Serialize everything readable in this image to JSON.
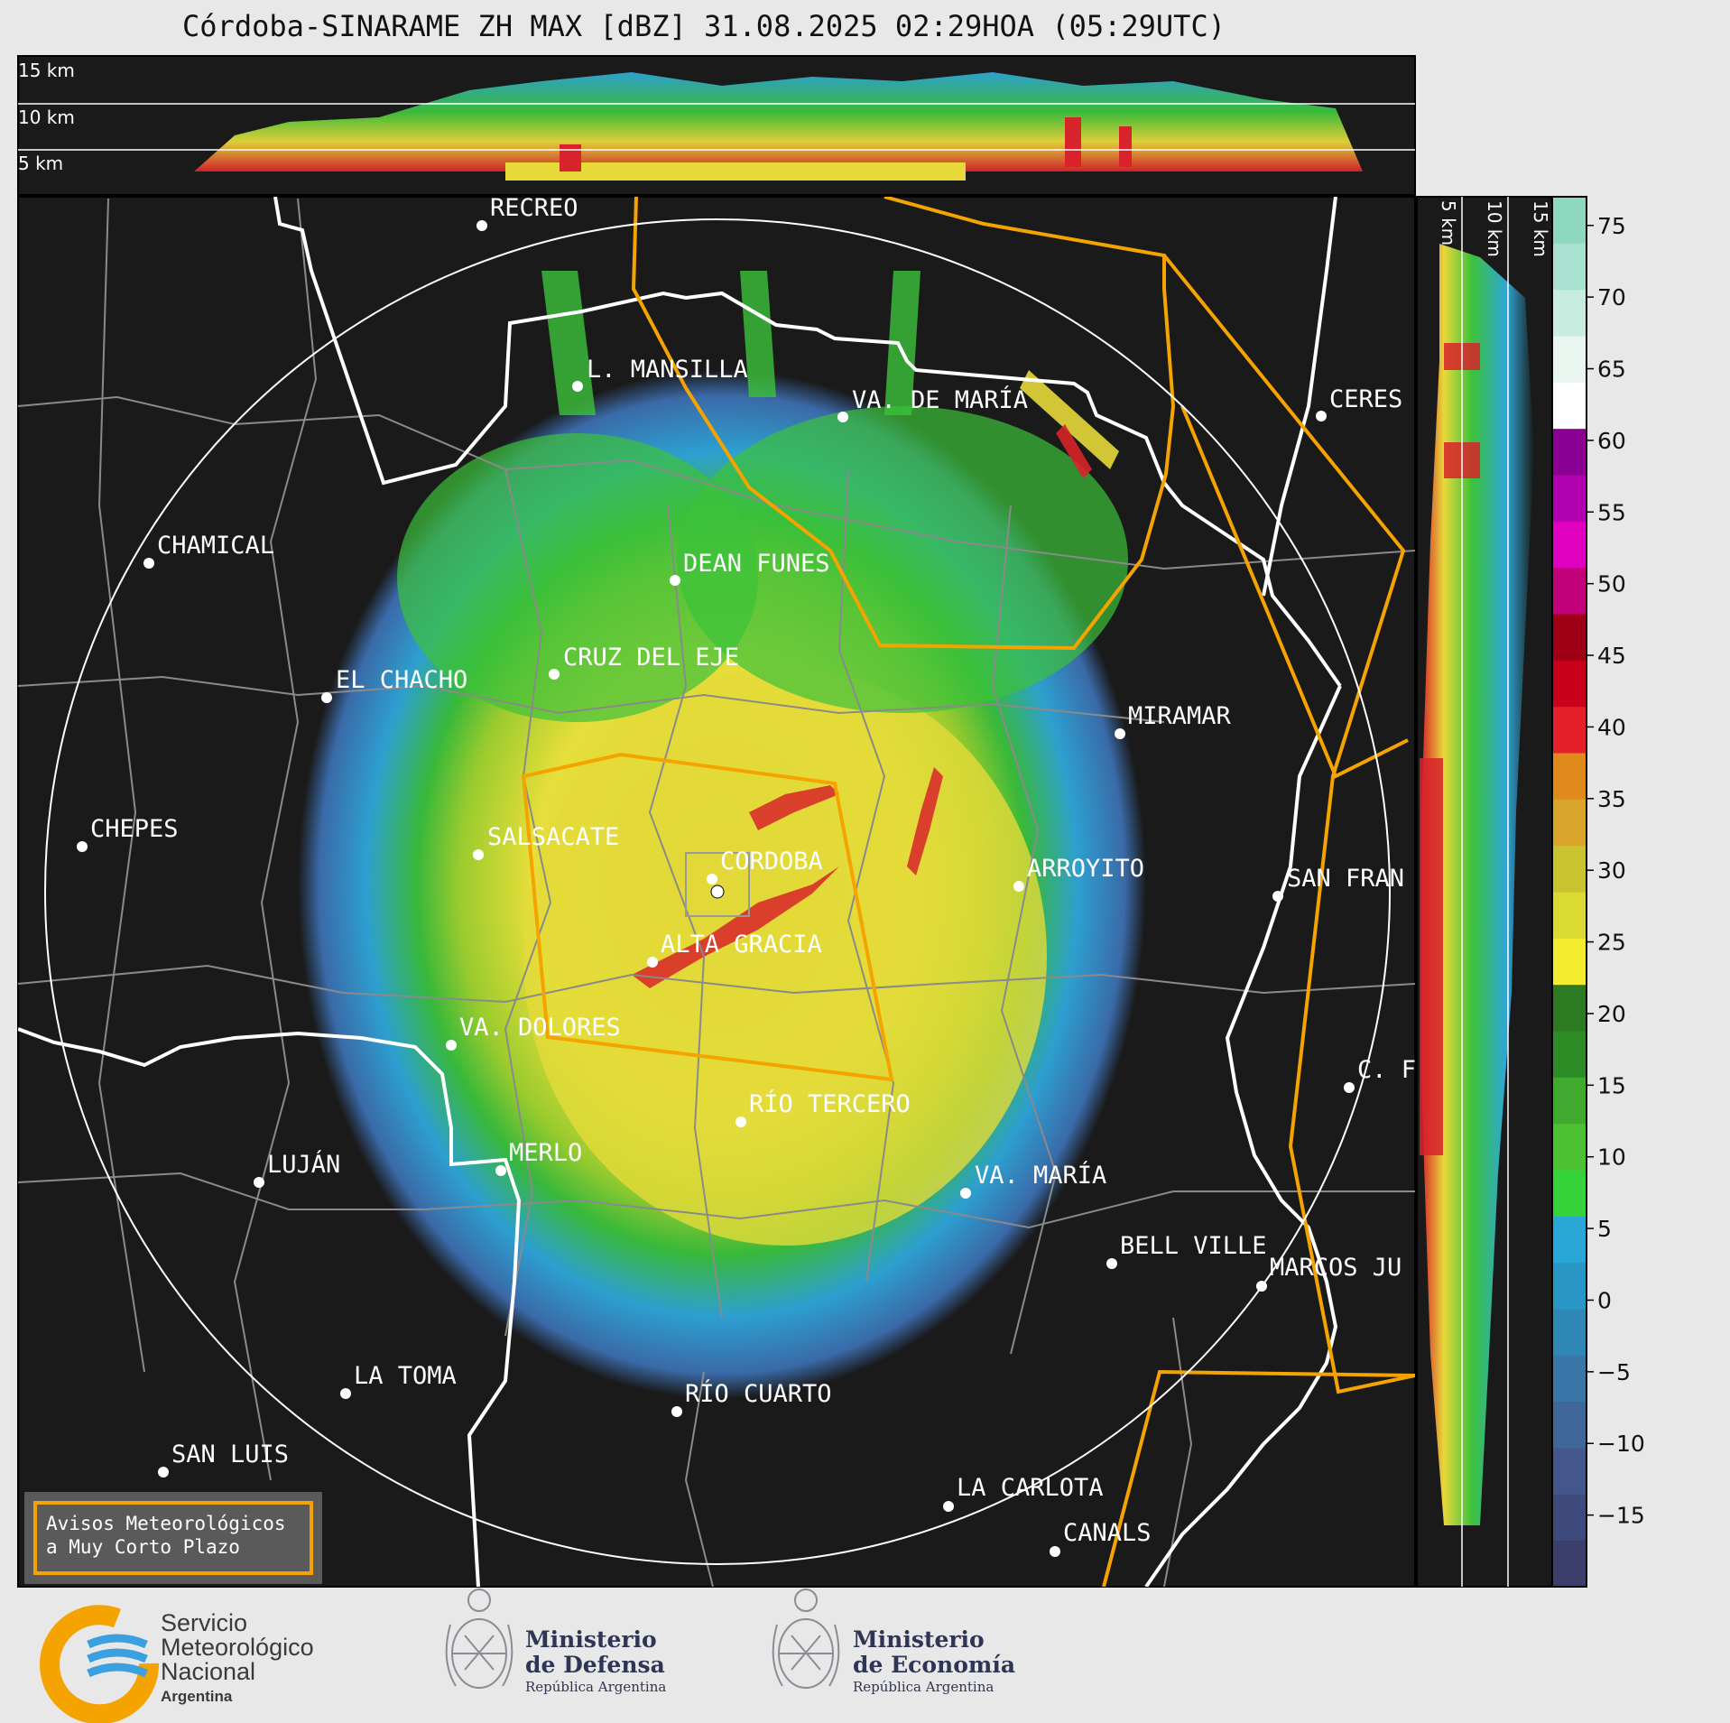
{
  "title": "Córdoba-SINARAME ZH MAX [dBZ] 31.08.2025 02:29HOA (05:29UTC)",
  "top_panel_labels": [
    "15 km",
    "10 km",
    "5 km"
  ],
  "side_panel_labels": [
    "5 km",
    "10 km",
    "15 km"
  ],
  "cities": [
    {
      "name": "RECREO"
    },
    {
      "name": "L. MANSILLA"
    },
    {
      "name": "VA. DE MARÍA"
    },
    {
      "name": "CERES"
    },
    {
      "name": "CHAMICAL"
    },
    {
      "name": "DEAN FUNES"
    },
    {
      "name": "CRUZ DEL EJE"
    },
    {
      "name": "EL CHACHO"
    },
    {
      "name": "MIRAMAR"
    },
    {
      "name": "CHEPES"
    },
    {
      "name": "SALSACATE"
    },
    {
      "name": "CORDOBA"
    },
    {
      "name": "ARROYITO"
    },
    {
      "name": "SAN FRAN"
    },
    {
      "name": "ALTA GRACIA"
    },
    {
      "name": "VA. DOLORES"
    },
    {
      "name": "C. F"
    },
    {
      "name": "RÍO TERCERO"
    },
    {
      "name": "MERLO"
    },
    {
      "name": "LUJÁN"
    },
    {
      "name": "VA. MARÍA"
    },
    {
      "name": "BELL VILLE"
    },
    {
      "name": "MARCOS JU"
    },
    {
      "name": "LA TOMA"
    },
    {
      "name": "RÍO CUARTO"
    },
    {
      "name": "SAN LUIS"
    },
    {
      "name": "LA CARLOTA"
    },
    {
      "name": "CANALS"
    }
  ],
  "colorbar": {
    "ticks": [
      "75",
      "70",
      "65",
      "60",
      "55",
      "50",
      "45",
      "40",
      "35",
      "30",
      "25",
      "20",
      "15",
      "10",
      "5",
      "0",
      "−5",
      "−10",
      "−15"
    ],
    "colors": [
      "#3b3d6b",
      "#3f4a7c",
      "#43578c",
      "#3f6799",
      "#3a77a8",
      "#2f87b6",
      "#2897c6",
      "#29a8d8",
      "#36d23a",
      "#4cc233",
      "#3faa2d",
      "#2e8c27",
      "#2c7a22",
      "#f3ec2f",
      "#dada32",
      "#c9c330",
      "#d9a52a",
      "#e08a1c",
      "#e5202a",
      "#c8001a",
      "#a00016",
      "#c2007a",
      "#e000c0",
      "#b000b0",
      "#8a0092",
      "#ffffff",
      "#e8f6ef",
      "#c9ece0",
      "#a8e1cf",
      "#8fd8c0"
    ]
  },
  "warning_box": {
    "line1": "Avisos Meteorológicos",
    "line2": "a Muy Corto Plazo"
  },
  "logos": {
    "smn": {
      "line1": "Servicio",
      "line2": "Meteorológico",
      "line3": "Nacional",
      "line4": "Argentina"
    },
    "defensa": {
      "line1": "Ministerio",
      "line2": "de Defensa",
      "line3": "República Argentina"
    },
    "economia": {
      "line1": "Ministerio",
      "line2": "de Economía",
      "line3": "República Argentina"
    }
  }
}
